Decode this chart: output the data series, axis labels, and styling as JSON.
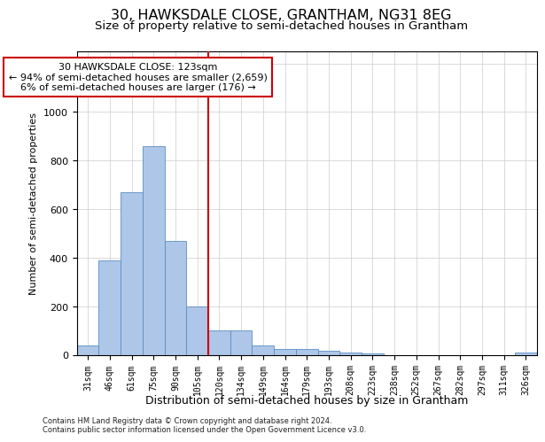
{
  "title": "30, HAWKSDALE CLOSE, GRANTHAM, NG31 8EG",
  "subtitle": "Size of property relative to semi-detached houses in Grantham",
  "xlabel": "Distribution of semi-detached houses by size in Grantham",
  "ylabel": "Number of semi-detached properties",
  "categories": [
    "31sqm",
    "46sqm",
    "61sqm",
    "75sqm",
    "90sqm",
    "105sqm",
    "120sqm",
    "134sqm",
    "149sqm",
    "164sqm",
    "179sqm",
    "193sqm",
    "208sqm",
    "223sqm",
    "238sqm",
    "252sqm",
    "267sqm",
    "282sqm",
    "297sqm",
    "311sqm",
    "326sqm"
  ],
  "values": [
    40,
    390,
    670,
    860,
    470,
    200,
    100,
    100,
    40,
    25,
    25,
    15,
    10,
    5,
    0,
    0,
    0,
    0,
    0,
    0,
    10
  ],
  "bar_color": "#aec6e8",
  "bar_edge_color": "#5a8fc2",
  "vline_index": 5.5,
  "annotation_line1": "30 HAWKSDALE CLOSE: 123sqm",
  "annotation_line2": "← 94% of semi-detached houses are smaller (2,659)",
  "annotation_line3": "6% of semi-detached houses are larger (176) →",
  "annotation_box_facecolor": "#ffffff",
  "annotation_box_edgecolor": "#cc0000",
  "vline_color": "#cc0000",
  "grid_color": "#cccccc",
  "ylim_max": 1250,
  "footer1": "Contains HM Land Registry data © Crown copyright and database right 2024.",
  "footer2": "Contains public sector information licensed under the Open Government Licence v3.0."
}
